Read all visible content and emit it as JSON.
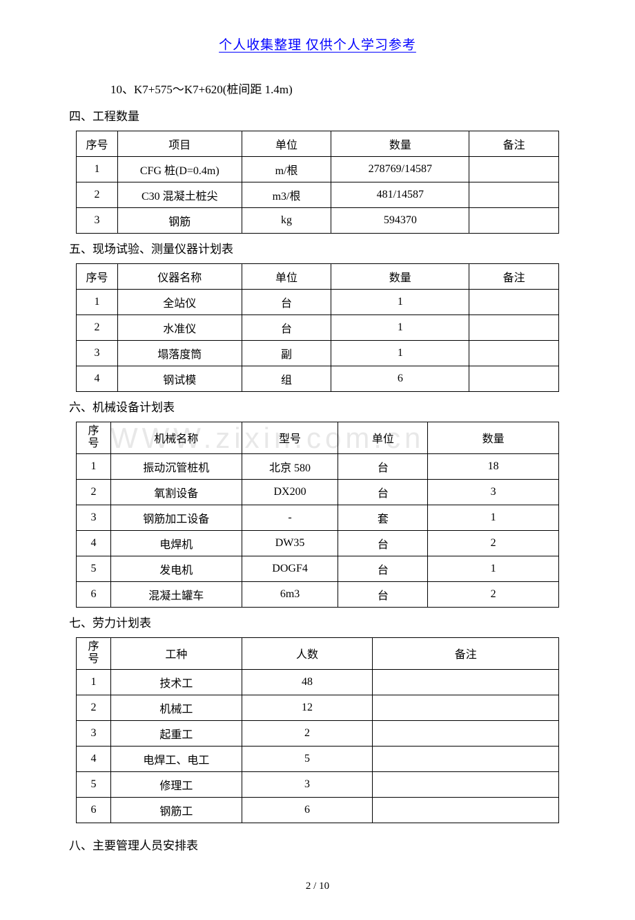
{
  "header": {
    "text": "个人收集整理     仅供个人学习参考",
    "color": "#0000ff"
  },
  "watermark": "WWW.zixin.com.cn",
  "line10": "10、K7+575～K7+620(桩间距 1.4m)",
  "page_number": "2 / 10",
  "sections": {
    "s4": {
      "title": "四、工程数量"
    },
    "s5": {
      "title": "五、现场试验、测量仪器计划表"
    },
    "s6": {
      "title": "六、机械设备计划表"
    },
    "s7": {
      "title": "七、劳力计划表"
    },
    "s8": {
      "title": "八、主要管理人员安排表"
    }
  },
  "table4": {
    "col_widths": [
      "60px",
      "180px",
      "130px",
      "200px",
      "130px"
    ],
    "headers": [
      "序号",
      "项目",
      "单位",
      "数量",
      "备注"
    ],
    "rows": [
      [
        "1",
        "CFG 桩(D=0.4m)",
        "m/根",
        "278769/14587",
        ""
      ],
      [
        "2",
        "C30 混凝土桩尖",
        "m3/根",
        "481/14587",
        ""
      ],
      [
        "3",
        "钢筋",
        "kg",
        "594370",
        ""
      ]
    ]
  },
  "table5": {
    "col_widths": [
      "60px",
      "180px",
      "130px",
      "200px",
      "130px"
    ],
    "headers": [
      "序号",
      "仪器名称",
      "单位",
      "数量",
      "备注"
    ],
    "rows": [
      [
        "1",
        "全站仪",
        "台",
        "1",
        ""
      ],
      [
        "2",
        "水准仪",
        "台",
        "1",
        ""
      ],
      [
        "3",
        "塌落度筒",
        "副",
        "1",
        ""
      ],
      [
        "4",
        "钢试模",
        "组",
        "6",
        ""
      ]
    ]
  },
  "table6": {
    "col_widths": [
      "50px",
      "190px",
      "140px",
      "130px",
      "190px"
    ],
    "headers": [
      "序\n号",
      "机械名称",
      "型号",
      "单位",
      "数量"
    ],
    "rows": [
      [
        "1",
        "振动沉管桩机",
        "北京 580",
        "台",
        "18"
      ],
      [
        "2",
        "氧割设备",
        "DX200",
        "台",
        "3"
      ],
      [
        "3",
        "钢筋加工设备",
        "-",
        "套",
        "1"
      ],
      [
        "4",
        "电焊机",
        "DW35",
        "台",
        "2"
      ],
      [
        "5",
        "发电机",
        "DOGF4",
        "台",
        "1"
      ],
      [
        "6",
        "混凝土罐车",
        "6m3",
        "台",
        "2"
      ]
    ]
  },
  "table7": {
    "col_widths": [
      "50px",
      "190px",
      "190px",
      "270px"
    ],
    "headers": [
      "序\n号",
      "工种",
      "人数",
      "备注"
    ],
    "rows": [
      [
        "1",
        "技术工",
        "48",
        ""
      ],
      [
        "2",
        "机械工",
        "12",
        ""
      ],
      [
        "3",
        "起重工",
        "2",
        ""
      ],
      [
        "4",
        "电焊工、电工",
        "5",
        ""
      ],
      [
        "5",
        "修理工",
        "3",
        ""
      ],
      [
        "6",
        "钢筋工",
        "6",
        ""
      ]
    ]
  }
}
